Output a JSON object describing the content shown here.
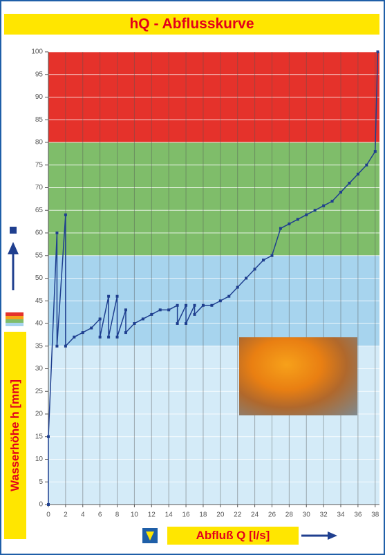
{
  "chart_data": {
    "type": "line",
    "title": "hQ - Abflusskurve",
    "x_label": "Abfluß Q [l/s]",
    "y_label": "Wasserhöhe h [mm]",
    "xlim": [
      0,
      38.5
    ],
    "ylim": [
      0,
      100
    ],
    "xticks": [
      0,
      2,
      4,
      6,
      8,
      10,
      12,
      14,
      16,
      18,
      20,
      22,
      24,
      26,
      28,
      30,
      32,
      34,
      36,
      38
    ],
    "yticks": [
      0,
      5,
      10,
      15,
      20,
      25,
      30,
      35,
      40,
      45,
      50,
      55,
      60,
      65,
      70,
      75,
      80,
      85,
      90,
      95,
      100
    ],
    "grid": true,
    "bands": [
      {
        "from": 0,
        "to": 35,
        "color": "#d4ebf8"
      },
      {
        "from": 35,
        "to": 55,
        "color": "#a7d4ee"
      },
      {
        "from": 55,
        "to": 80,
        "color": "#7fbd6a"
      },
      {
        "from": 80,
        "to": 100,
        "color": "#e5322b"
      }
    ],
    "series": [
      {
        "color": "#1f3f8f",
        "x": [
          0,
          0,
          1,
          1,
          2,
          2,
          3,
          4,
          5,
          6,
          6,
          7,
          7,
          8,
          8,
          9,
          9,
          10,
          11,
          12,
          13,
          14,
          15,
          15,
          16,
          16,
          17,
          17,
          18,
          19,
          20,
          21,
          22,
          23,
          24,
          25,
          26,
          27,
          28,
          29,
          30,
          31,
          32,
          33,
          34,
          35,
          36,
          37,
          38,
          38.3
        ],
        "values": [
          0,
          15,
          60,
          35,
          64,
          35,
          37,
          38,
          39,
          41,
          37,
          46,
          37,
          46,
          37,
          43,
          38,
          40,
          41,
          42,
          43,
          43,
          44,
          40,
          44,
          40,
          44,
          42,
          44,
          44,
          45,
          46,
          48,
          50,
          52,
          54,
          55,
          61,
          62,
          63,
          64,
          65,
          66,
          67,
          69,
          71,
          73,
          75,
          78,
          100
        ]
      }
    ]
  }
}
